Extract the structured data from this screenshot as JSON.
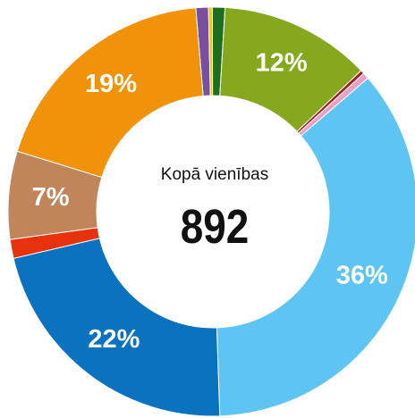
{
  "chart_data": {
    "type": "donut",
    "values": [
      1,
      0.3,
      1,
      12,
      0.3,
      0.5,
      36,
      22,
      1.5,
      7,
      19
    ],
    "value_labels": [
      null,
      null,
      null,
      "12%",
      null,
      null,
      "36%",
      "22%",
      null,
      "7%",
      "19%"
    ],
    "colors": [
      "#7b4fa0",
      "#f0c419",
      "#1f6e1f",
      "#86a81e",
      "#a01f20",
      "#e8a0c8",
      "#5ec5f2",
      "#0a72bf",
      "#e8320e",
      "#c0855a",
      "#f0920a"
    ],
    "center_label": "Kopā vienības",
    "center_value": 892
  }
}
